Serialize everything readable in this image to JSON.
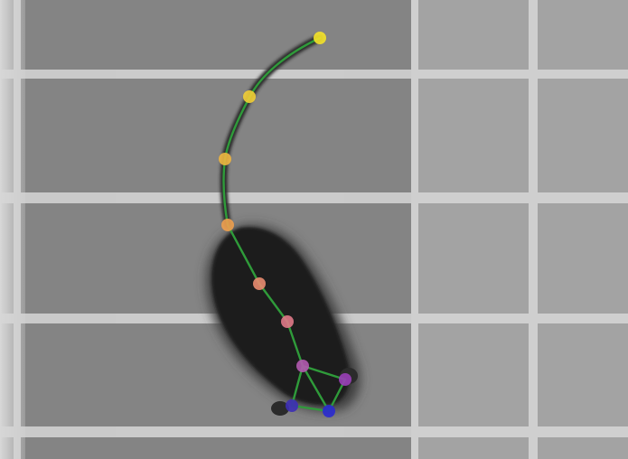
{
  "colors": {
    "floor": "#828282",
    "floor_light": "#9c9c9c",
    "floor_right": "#a8a8a8",
    "grid_line": "#d9d9d9",
    "mouse_body": "#1f1f1f",
    "mouse_shadow": "#3b3b3b",
    "skeleton": "#2e9a3a"
  },
  "keypoints": [
    {
      "name": "tail-tip",
      "color": "#f5e32a"
    },
    {
      "name": "tail-3",
      "color": "#f2cf36"
    },
    {
      "name": "tail-2",
      "color": "#f0b640"
    },
    {
      "name": "tail-base",
      "color": "#eea04f"
    },
    {
      "name": "spine-low",
      "color": "#e98c70"
    },
    {
      "name": "spine-mid",
      "color": "#e07a88"
    },
    {
      "name": "neck",
      "color": "#b25ab0"
    },
    {
      "name": "ear-right",
      "color": "#9a3fb8"
    },
    {
      "name": "ear-left",
      "color": "#3d2fb5"
    },
    {
      "name": "nose",
      "color": "#2a2ad0"
    }
  ]
}
